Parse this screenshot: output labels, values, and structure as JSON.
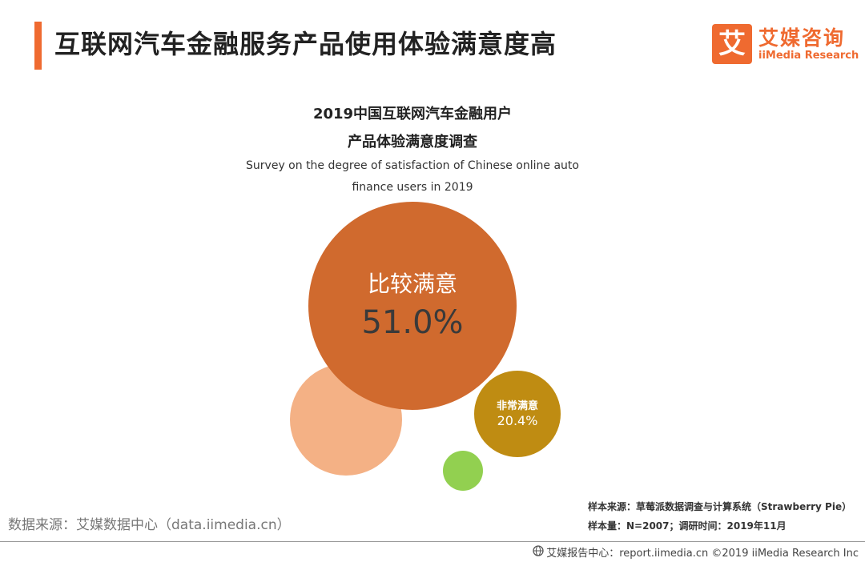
{
  "header": {
    "title": "互联网汽车金融服务产品使用体验满意度高",
    "accent_color": "#ef6a30"
  },
  "logo": {
    "mark": "艾",
    "name_cn": "艾媒咨询",
    "name_en": "iiMedia Research"
  },
  "chart_data": {
    "type": "bubble",
    "title_lines": [
      "2019中国互联网汽车金融用户",
      "产品体验满意度调查"
    ],
    "subtitle_lines": [
      "Survey on the degree of satisfaction  of Chinese online auto",
      "finance users in 2019"
    ],
    "series": [
      {
        "label": "比较满意",
        "value": 51.0,
        "value_text": "51.0%",
        "color": "#d06a2e"
      },
      {
        "label": "非常满意",
        "value": 20.4,
        "value_text": "20.4%",
        "color": "#bf8c12"
      },
      {
        "label": "",
        "value": null,
        "value_text": "",
        "color": "#f4b185"
      },
      {
        "label": "",
        "value": null,
        "value_text": "",
        "color": "#92d050"
      }
    ]
  },
  "source": {
    "left_text": "数据来源：艾媒数据中心（data.iimedia.cn）",
    "sample_source": "样本来源：草莓派数据调查与计算系统（Strawberry Pie）",
    "sample_size": "样本量：N=2007；调研时间：2019年11月"
  },
  "footer": {
    "icon": "globe-icon",
    "text": "艾媒报告中心：report.iimedia.cn  ©2019  iiMedia Research  Inc"
  }
}
